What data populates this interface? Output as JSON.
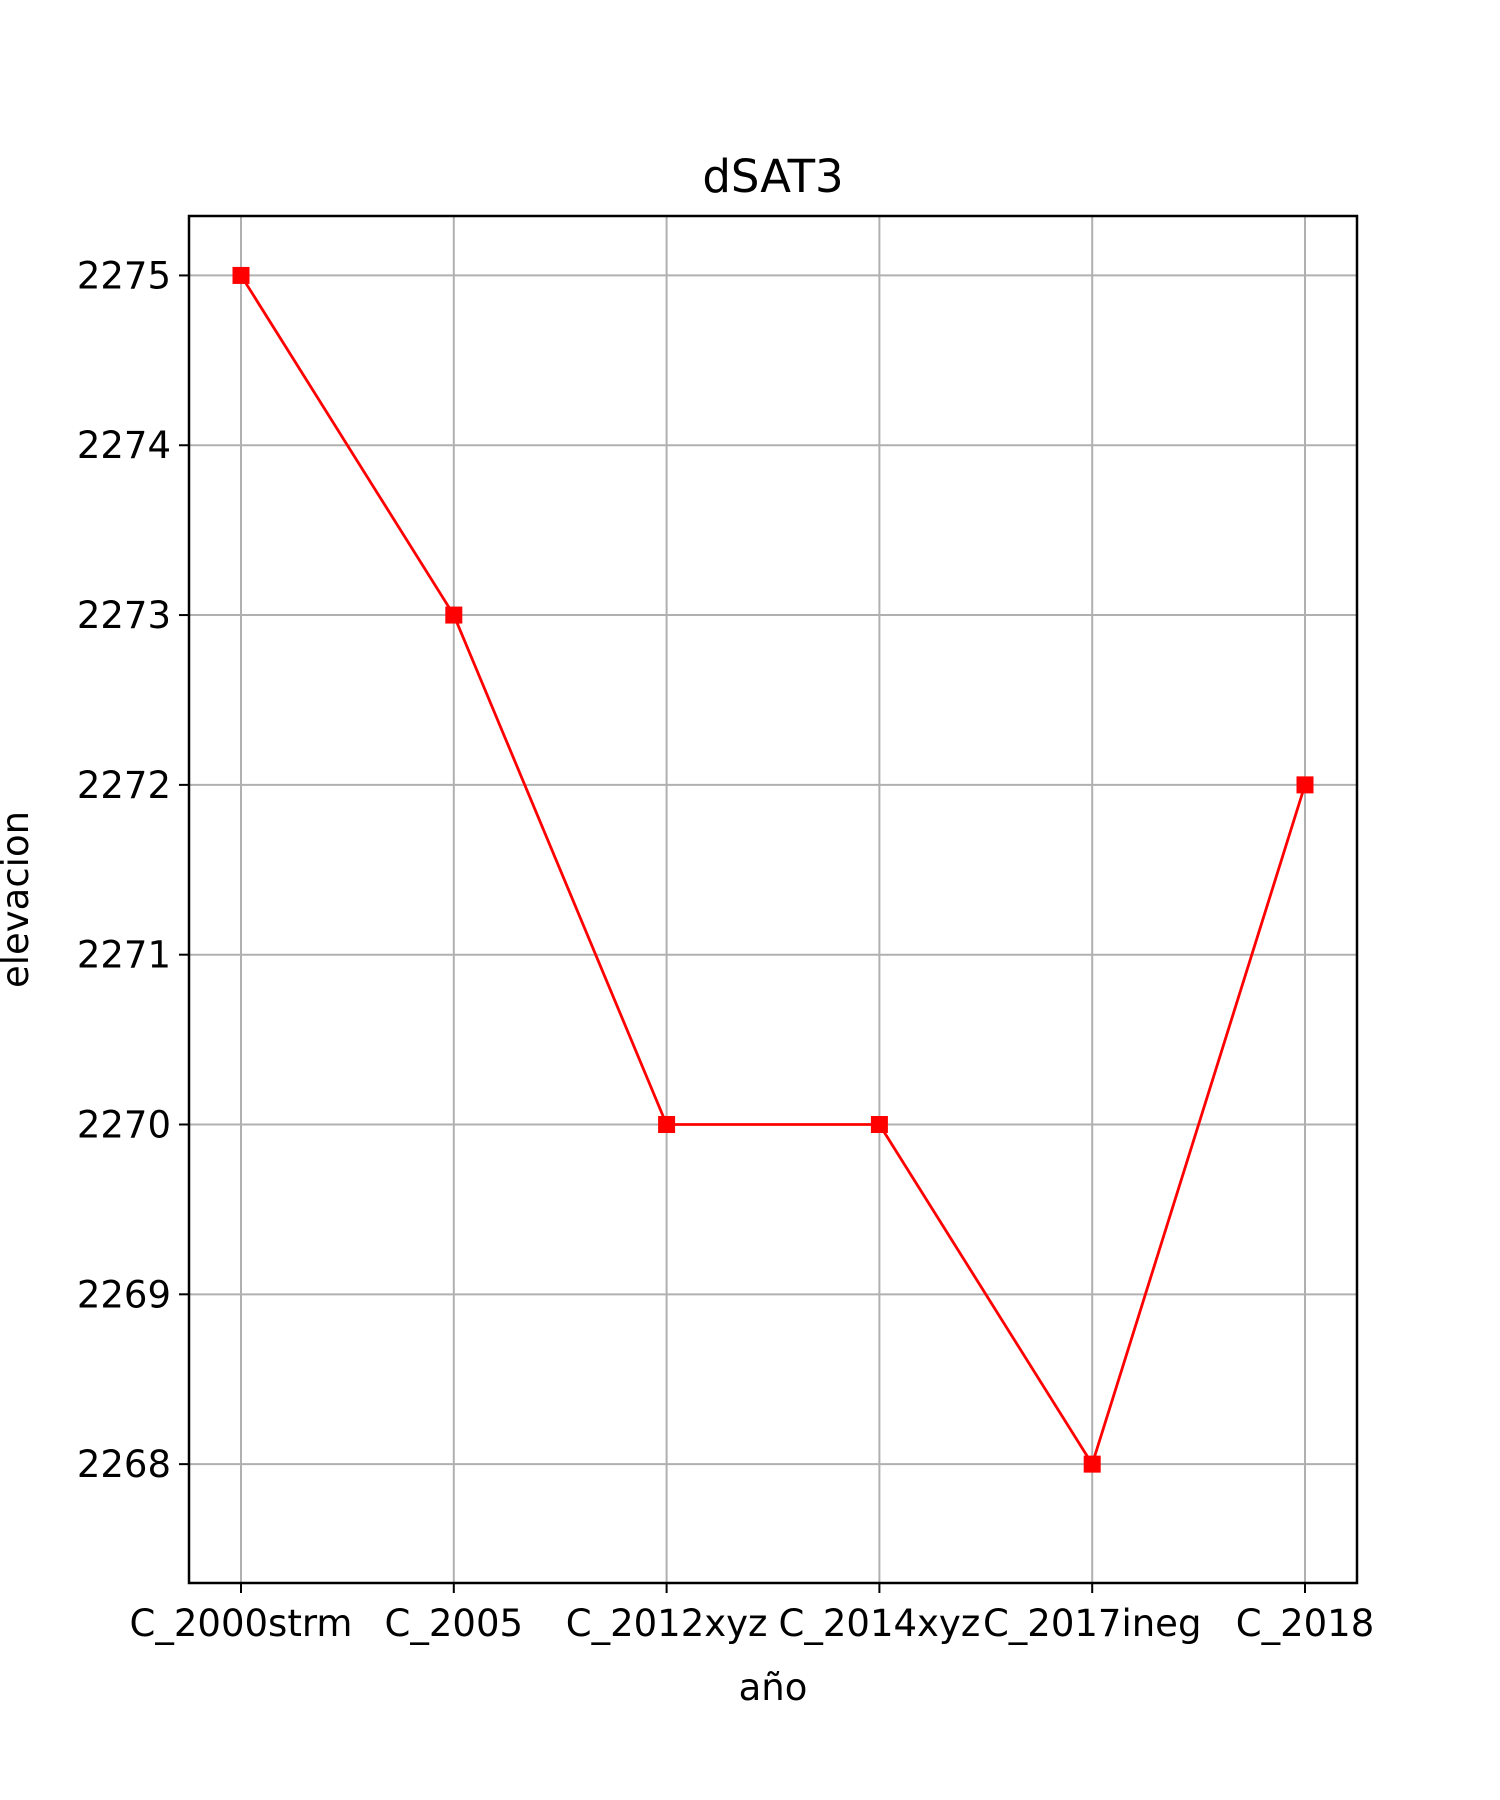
{
  "chart_data": {
    "type": "line",
    "title": "dSAT3",
    "xlabel": "año",
    "ylabel": "elevacion",
    "categories": [
      "C_2000strm",
      "C_2005",
      "C_2012xyz",
      "C_2014xyz",
      "C_2017ineg",
      "C_2018"
    ],
    "series": [
      {
        "values": [
          2275,
          2273,
          2270,
          2270,
          2268,
          2272
        ],
        "color": "#ff0000",
        "marker": "square"
      }
    ],
    "ylim": [
      2267.3,
      2275.35
    ],
    "yticks": [
      2268,
      2269,
      2270,
      2271,
      2272,
      2273,
      2274,
      2275
    ],
    "grid": true,
    "grid_color": "#b0b0b0",
    "axis_color": "#000000"
  }
}
